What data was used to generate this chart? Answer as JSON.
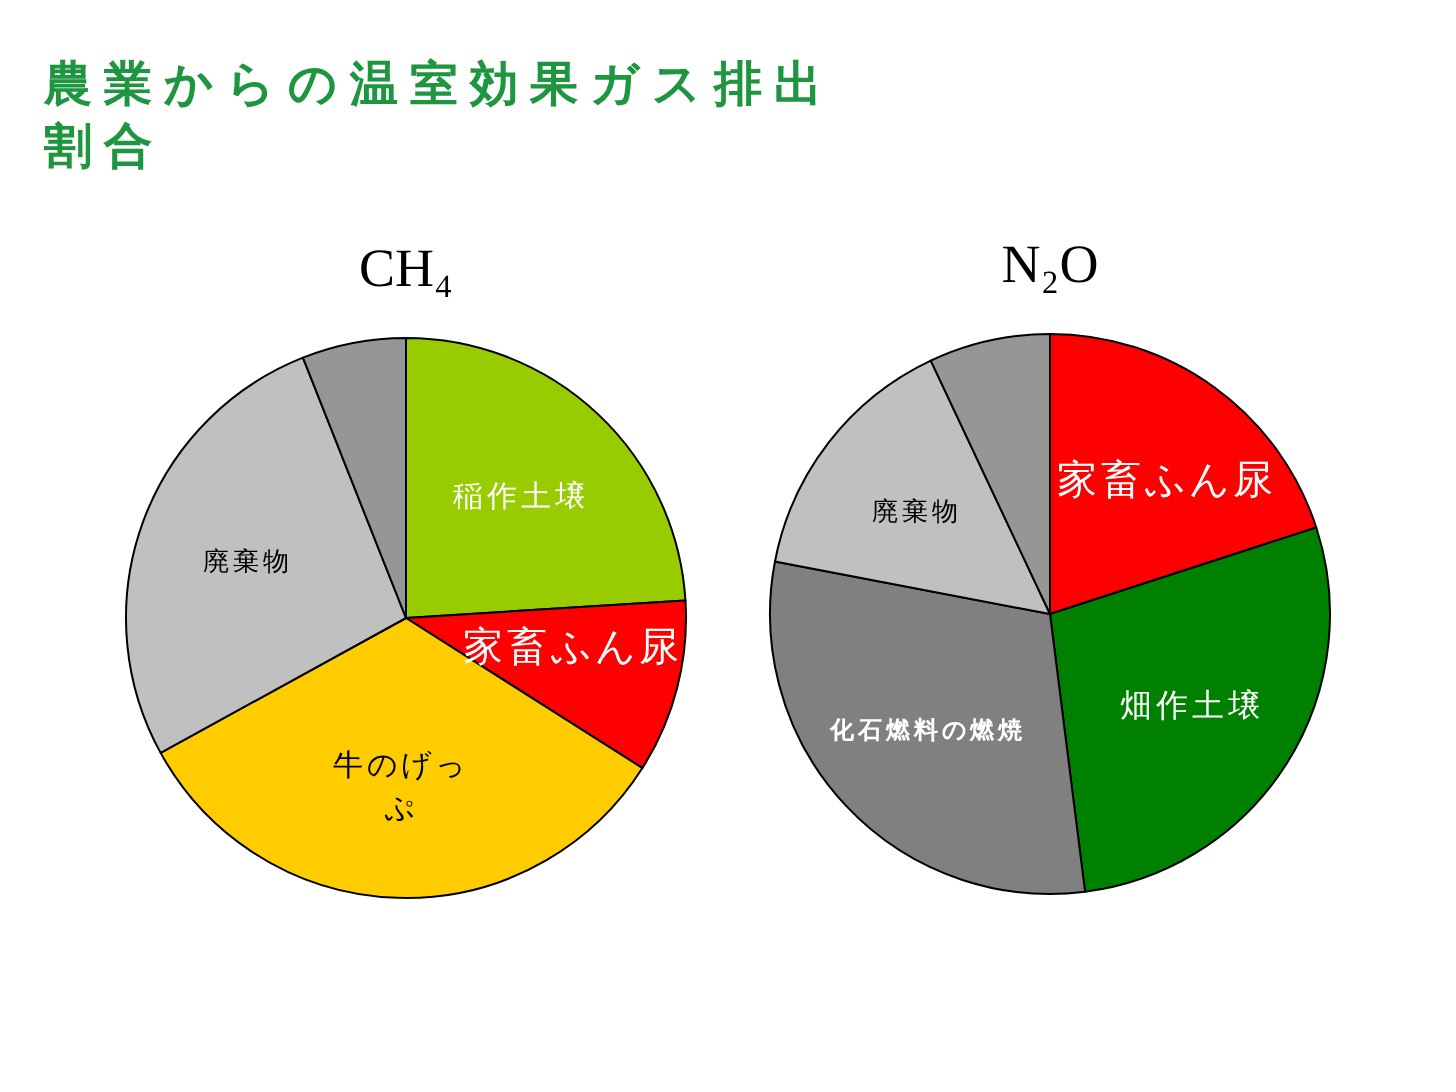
{
  "chart_data": [
    {
      "type": "other",
      "title": "農業からの温室効果ガス排出割合"
    },
    {
      "type": "pie",
      "title": "CH₄",
      "categories": [
        "稲作土壌",
        "家畜ふん尿",
        "牛のげっぷ",
        "廃棄物",
        null
      ],
      "values": [
        24,
        10,
        33,
        27,
        6
      ],
      "colors": [
        "#99cc00",
        "#ff0000",
        "#ffcc00",
        "#c0c0c0",
        "#969696"
      ]
    },
    {
      "type": "pie",
      "title": "N₂O",
      "categories": [
        "家畜ふん尿",
        "畑作土壌",
        "化石燃料の燃焼",
        "廃棄物",
        null
      ],
      "values": [
        20,
        28,
        30,
        15,
        7
      ],
      "colors": [
        "#ff0000",
        "#008000",
        "#808080",
        "#c0c0c0",
        "#969696"
      ]
    }
  ]
}
